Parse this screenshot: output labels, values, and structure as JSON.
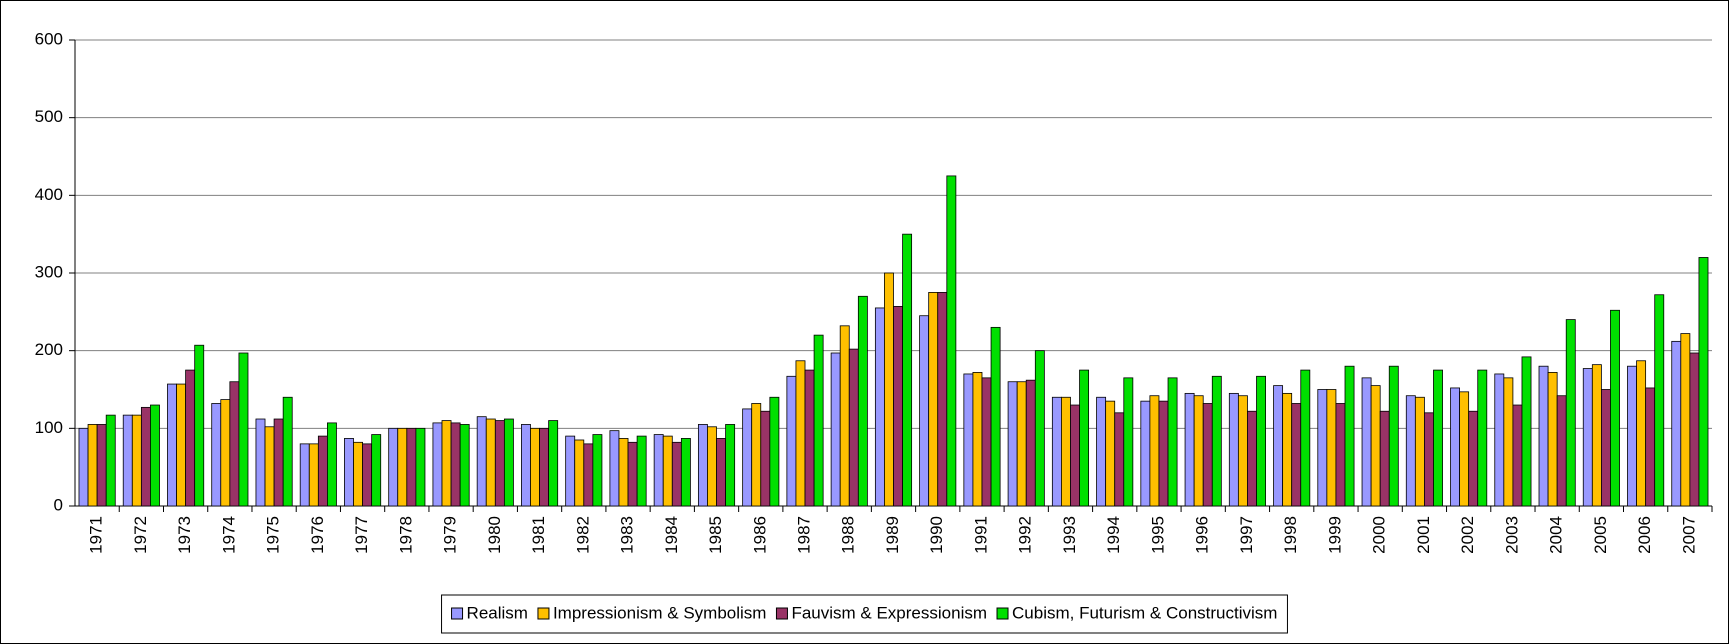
{
  "chart_data": {
    "type": "bar",
    "categories": [
      "1971",
      "1972",
      "1973",
      "1974",
      "1975",
      "1976",
      "1977",
      "1978",
      "1979",
      "1980",
      "1981",
      "1982",
      "1983",
      "1984",
      "1985",
      "1986",
      "1987",
      "1988",
      "1989",
      "1990",
      "1991",
      "1992",
      "1993",
      "1994",
      "1995",
      "1996",
      "1997",
      "1998",
      "1999",
      "2000",
      "2001",
      "2002",
      "2003",
      "2004",
      "2005",
      "2006",
      "2007"
    ],
    "series": [
      {
        "name": "Realism",
        "color": "#9999ff",
        "values": [
          100,
          117,
          157,
          132,
          112,
          80,
          87,
          100,
          107,
          115,
          105,
          90,
          97,
          92,
          105,
          125,
          167,
          197,
          255,
          245,
          170,
          160,
          140,
          140,
          135,
          145,
          145,
          155,
          150,
          165,
          142,
          152,
          170,
          180,
          177,
          180,
          212
        ]
      },
      {
        "name": "Impressionism & Symbolism",
        "color": "#ffc000",
        "values": [
          105,
          117,
          157,
          137,
          102,
          80,
          82,
          100,
          110,
          112,
          100,
          85,
          87,
          90,
          102,
          132,
          187,
          232,
          300,
          275,
          172,
          160,
          140,
          135,
          142,
          142,
          142,
          145,
          150,
          155,
          140,
          147,
          165,
          172,
          182,
          187,
          222
        ]
      },
      {
        "name": "Fauvism & Expressionism",
        "color": "#993366",
        "values": [
          105,
          127,
          175,
          160,
          112,
          90,
          80,
          100,
          107,
          110,
          100,
          80,
          82,
          82,
          87,
          122,
          175,
          202,
          257,
          275,
          165,
          162,
          130,
          120,
          135,
          132,
          122,
          132,
          132,
          122,
          120,
          122,
          130,
          142,
          150,
          152,
          197
        ]
      },
      {
        "name": "Cubism, Futurism & Constructivism",
        "color": "#00e000",
        "values": [
          117,
          130,
          207,
          197,
          140,
          107,
          92,
          100,
          105,
          112,
          110,
          92,
          90,
          87,
          105,
          140,
          220,
          270,
          350,
          425,
          230,
          200,
          175,
          165,
          165,
          167,
          167,
          175,
          180,
          180,
          175,
          175,
          192,
          240,
          252,
          272,
          320
        ]
      }
    ],
    "ylim": [
      0,
      600
    ],
    "yticks": [
      0,
      100,
      200,
      300,
      400,
      500,
      600
    ],
    "grid": true,
    "legend": "bottom"
  }
}
